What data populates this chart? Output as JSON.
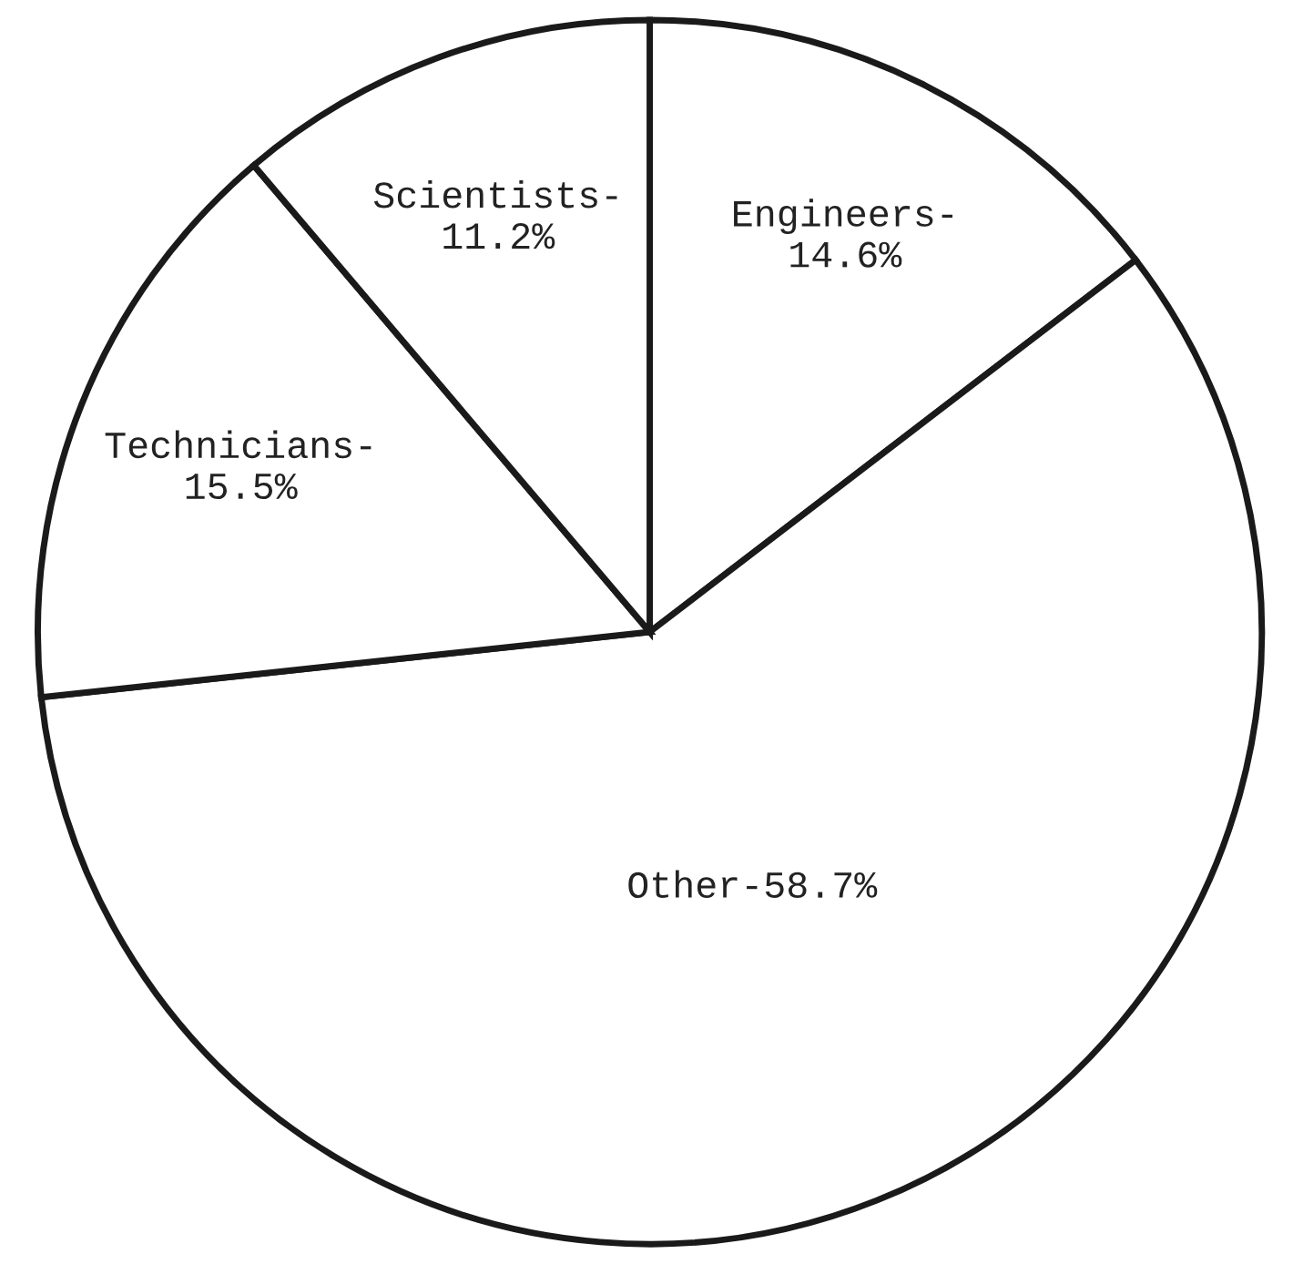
{
  "chart_data": {
    "type": "pie",
    "categories": [
      "Engineers-",
      "Other-",
      "Technicians-",
      "Scientists-"
    ],
    "values": [
      14.6,
      58.7,
      15.5,
      11.2
    ],
    "value_labels": [
      "14.6%",
      "58.7%",
      "15.5%",
      "11.2%"
    ],
    "colors": [
      "#ffffff",
      "#ffffff",
      "#ffffff",
      "#ffffff"
    ],
    "legend": false
  }
}
